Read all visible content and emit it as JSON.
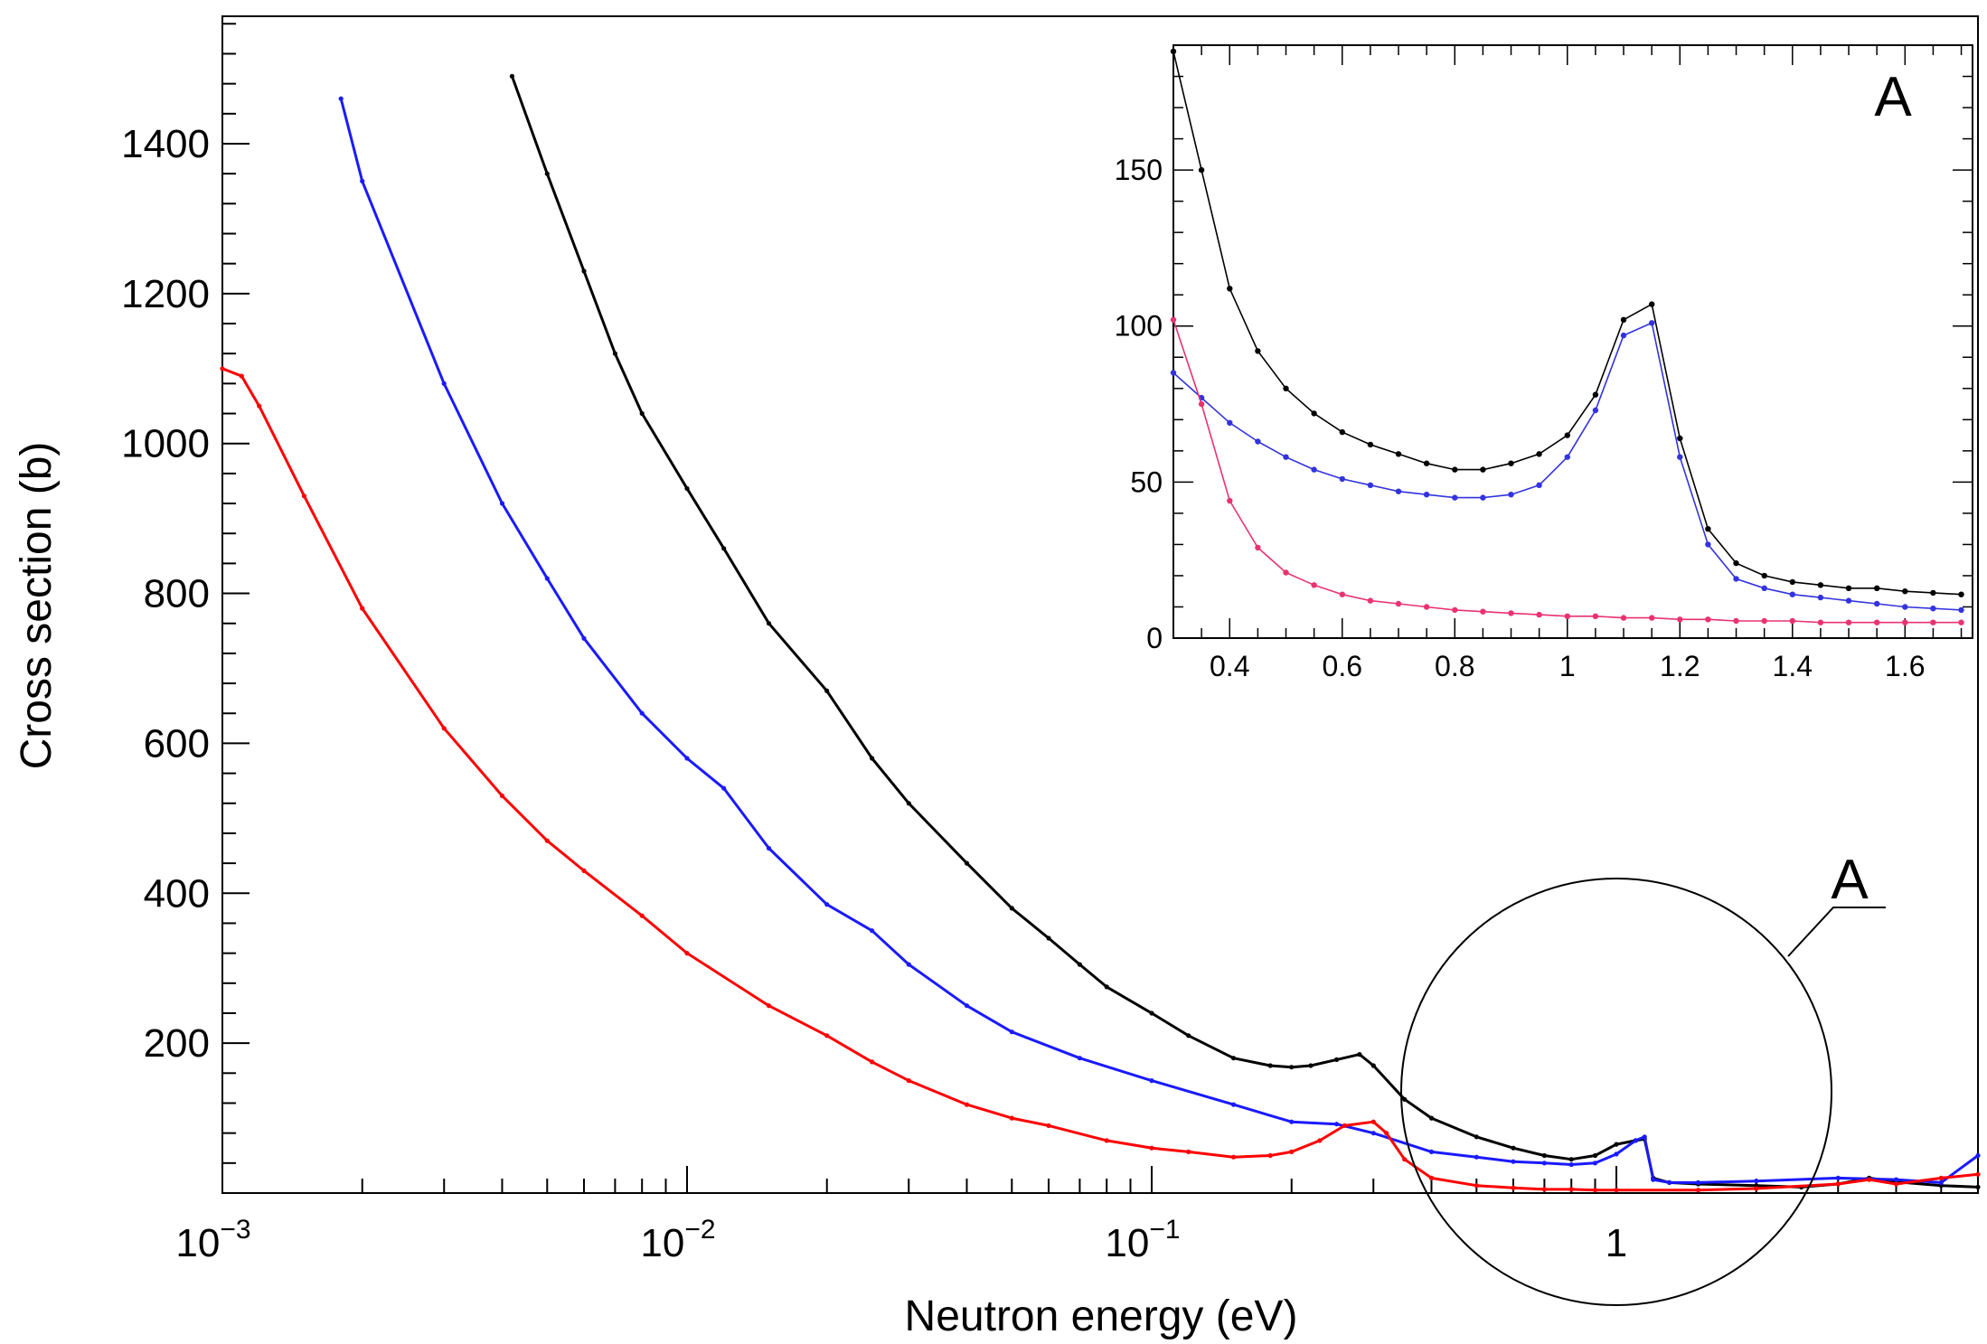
{
  "chart_data": [
    {
      "type": "line",
      "title": "",
      "xlabel": "Neutron energy (eV)",
      "ylabel": "Cross section (b)",
      "x_scale": "log",
      "xlim": [
        0.001,
        6
      ],
      "ylim": [
        0,
        1570
      ],
      "x_ticks": [
        {
          "value": 0.001,
          "base": "10",
          "exp": "−3"
        },
        {
          "value": 0.01,
          "base": "10",
          "exp": "−2"
        },
        {
          "value": 0.1,
          "base": "10",
          "exp": "−1"
        },
        {
          "value": 1,
          "base": "1",
          "exp": ""
        }
      ],
      "y_ticks": [
        200,
        400,
        600,
        800,
        1000,
        1200,
        1400
      ],
      "grid": false,
      "legend": "none",
      "series": [
        {
          "color": "#000000",
          "x": [
            0.0042,
            0.005,
            0.006,
            0.007,
            0.008,
            0.01,
            0.012,
            0.015,
            0.02,
            0.025,
            0.03,
            0.04,
            0.05,
            0.06,
            0.07,
            0.08,
            0.1,
            0.12,
            0.15,
            0.18,
            0.2,
            0.22,
            0.25,
            0.28,
            0.3,
            0.35,
            0.4,
            0.5,
            0.6,
            0.7,
            0.8,
            0.9,
            1.0,
            1.1,
            1.15,
            1.2,
            1.3,
            1.5,
            2.0,
            2.5,
            3.0,
            3.5,
            4.0,
            5.0,
            6.0
          ],
          "y": [
            1490,
            1360,
            1230,
            1120,
            1040,
            940,
            860,
            760,
            670,
            580,
            520,
            440,
            380,
            340,
            305,
            275,
            240,
            210,
            180,
            170,
            168,
            170,
            178,
            185,
            170,
            125,
            100,
            75,
            60,
            50,
            45,
            50,
            65,
            70,
            72,
            20,
            14,
            12,
            10,
            8,
            12,
            20,
            15,
            10,
            8
          ]
        },
        {
          "color": "#1a1aff",
          "x": [
            0.0018,
            0.002,
            0.003,
            0.004,
            0.005,
            0.006,
            0.008,
            0.01,
            0.012,
            0.015,
            0.02,
            0.025,
            0.03,
            0.04,
            0.05,
            0.07,
            0.1,
            0.15,
            0.2,
            0.25,
            0.3,
            0.4,
            0.5,
            0.6,
            0.7,
            0.8,
            0.9,
            1.0,
            1.1,
            1.15,
            1.2,
            1.3,
            1.5,
            2.0,
            3.0,
            4.0,
            5.0,
            6.0
          ],
          "y": [
            1460,
            1350,
            1080,
            920,
            820,
            740,
            640,
            580,
            540,
            460,
            385,
            350,
            305,
            250,
            215,
            180,
            150,
            118,
            95,
            92,
            80,
            55,
            48,
            42,
            40,
            38,
            40,
            52,
            70,
            75,
            18,
            14,
            14,
            16,
            20,
            18,
            14,
            50
          ]
        },
        {
          "color": "#ff0000",
          "x": [
            0.001,
            0.0011,
            0.0012,
            0.0015,
            0.002,
            0.003,
            0.004,
            0.005,
            0.006,
            0.008,
            0.01,
            0.015,
            0.02,
            0.025,
            0.03,
            0.04,
            0.05,
            0.06,
            0.08,
            0.1,
            0.12,
            0.15,
            0.18,
            0.2,
            0.23,
            0.26,
            0.3,
            0.32,
            0.35,
            0.4,
            0.5,
            0.6,
            0.7,
            0.8,
            0.9,
            1.0,
            1.5,
            2.0,
            3.0,
            3.5,
            4.0,
            5.0,
            6.0
          ],
          "y": [
            1100,
            1090,
            1050,
            930,
            780,
            620,
            530,
            470,
            430,
            370,
            320,
            250,
            210,
            175,
            150,
            118,
            100,
            90,
            70,
            60,
            55,
            48,
            50,
            55,
            70,
            90,
            95,
            80,
            45,
            20,
            10,
            7,
            5,
            5,
            4,
            4,
            4,
            6,
            12,
            18,
            12,
            20,
            25
          ]
        }
      ]
    },
    {
      "type": "line",
      "title": "",
      "xlabel": "",
      "ylabel": "",
      "panel_label": "A",
      "xlim": [
        0.3,
        1.72
      ],
      "ylim": [
        0,
        190
      ],
      "x_ticks": [
        "0.4",
        "0.6",
        "0.8",
        "1",
        "1.2",
        "1.4",
        "1.6"
      ],
      "y_ticks": [
        "0",
        "50",
        "100",
        "150"
      ],
      "series": [
        {
          "color": "#000000",
          "x": [
            0.3,
            0.35,
            0.4,
            0.45,
            0.5,
            0.55,
            0.6,
            0.65,
            0.7,
            0.75,
            0.8,
            0.85,
            0.9,
            0.95,
            1.0,
            1.05,
            1.1,
            1.15,
            1.2,
            1.25,
            1.3,
            1.35,
            1.4,
            1.45,
            1.5,
            1.55,
            1.6,
            1.65,
            1.7
          ],
          "y": [
            188,
            150,
            112,
            92,
            80,
            72,
            66,
            62,
            59,
            56,
            54,
            54,
            56,
            59,
            65,
            78,
            102,
            107,
            64,
            35,
            24,
            20,
            18,
            17,
            16,
            16,
            15,
            14.5,
            14
          ]
        },
        {
          "color": "#3333dd",
          "x": [
            0.3,
            0.35,
            0.4,
            0.45,
            0.5,
            0.55,
            0.6,
            0.65,
            0.7,
            0.75,
            0.8,
            0.85,
            0.9,
            0.95,
            1.0,
            1.05,
            1.1,
            1.15,
            1.2,
            1.25,
            1.3,
            1.35,
            1.4,
            1.45,
            1.5,
            1.55,
            1.6,
            1.65,
            1.7
          ],
          "y": [
            85,
            77,
            69,
            63,
            58,
            54,
            51,
            49,
            47,
            46,
            45,
            45,
            46,
            49,
            58,
            73,
            97,
            101,
            58,
            30,
            19,
            16,
            14,
            13,
            12,
            11,
            10,
            9.5,
            9
          ]
        },
        {
          "color": "#e8336e",
          "x": [
            0.3,
            0.35,
            0.4,
            0.45,
            0.5,
            0.55,
            0.6,
            0.65,
            0.7,
            0.75,
            0.8,
            0.85,
            0.9,
            0.95,
            1.0,
            1.05,
            1.1,
            1.15,
            1.2,
            1.25,
            1.3,
            1.35,
            1.4,
            1.45,
            1.5,
            1.55,
            1.6,
            1.65,
            1.7
          ],
          "y": [
            102,
            75,
            44,
            29,
            21,
            17,
            14,
            12,
            11,
            10,
            9,
            8.5,
            8,
            7.5,
            7,
            7,
            6.5,
            6.5,
            6,
            6,
            5.5,
            5.5,
            5.5,
            5,
            5,
            5,
            5,
            5,
            5
          ]
        }
      ]
    }
  ],
  "callout": {
    "label": "A"
  }
}
